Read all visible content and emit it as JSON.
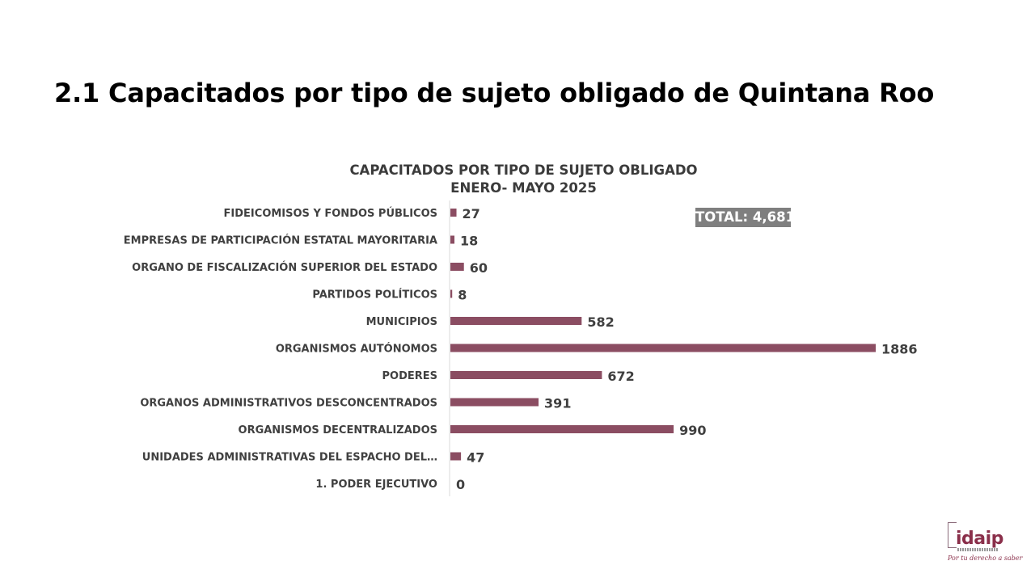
{
  "slide": {
    "title": "2.1 Capacitados por tipo de sujeto obligado de Quintana Roo"
  },
  "chart_data": {
    "type": "bar",
    "orientation": "horizontal",
    "title": "CAPACITADOS POR TIPO DE SUJETO OBLIGADO",
    "subtitle": "ENERO- MAYO 2025",
    "categories": [
      "FIDEICOMISOS Y FONDOS PÚBLICOS",
      "EMPRESAS DE PARTICIPACIÓN ESTATAL MAYORITARIA",
      "ORGANO DE FISCALIZACIÓN SUPERIOR DEL ESTADO",
      "PARTIDOS POLÍTICOS",
      "MUNICIPIOS",
      "ORGANISMOS AUTÓNOMOS",
      "PODERES",
      "ORGANOS ADMINISTRATIVOS DESCONCENTRADOS",
      "ORGANISMOS DECENTRALIZADOS",
      "UNIDADES ADMINISTRATIVAS DEL ESPACHO DEL…",
      "1. PODER EJECUTIVO"
    ],
    "values": [
      27,
      18,
      60,
      8,
      582,
      1886,
      672,
      391,
      990,
      47,
      0
    ],
    "value_labels": [
      "27",
      "18",
      "60",
      "8",
      "582",
      "1886",
      "672",
      "391",
      "990",
      "47",
      "0"
    ],
    "xlim": [
      0,
      1886
    ],
    "bar_color": "#8b4d62",
    "grid": false,
    "legend": "none",
    "annotation": "TOTAL: 4,681"
  },
  "logo": {
    "text": "idaip",
    "slogan": "Por tu derecho a saber"
  }
}
